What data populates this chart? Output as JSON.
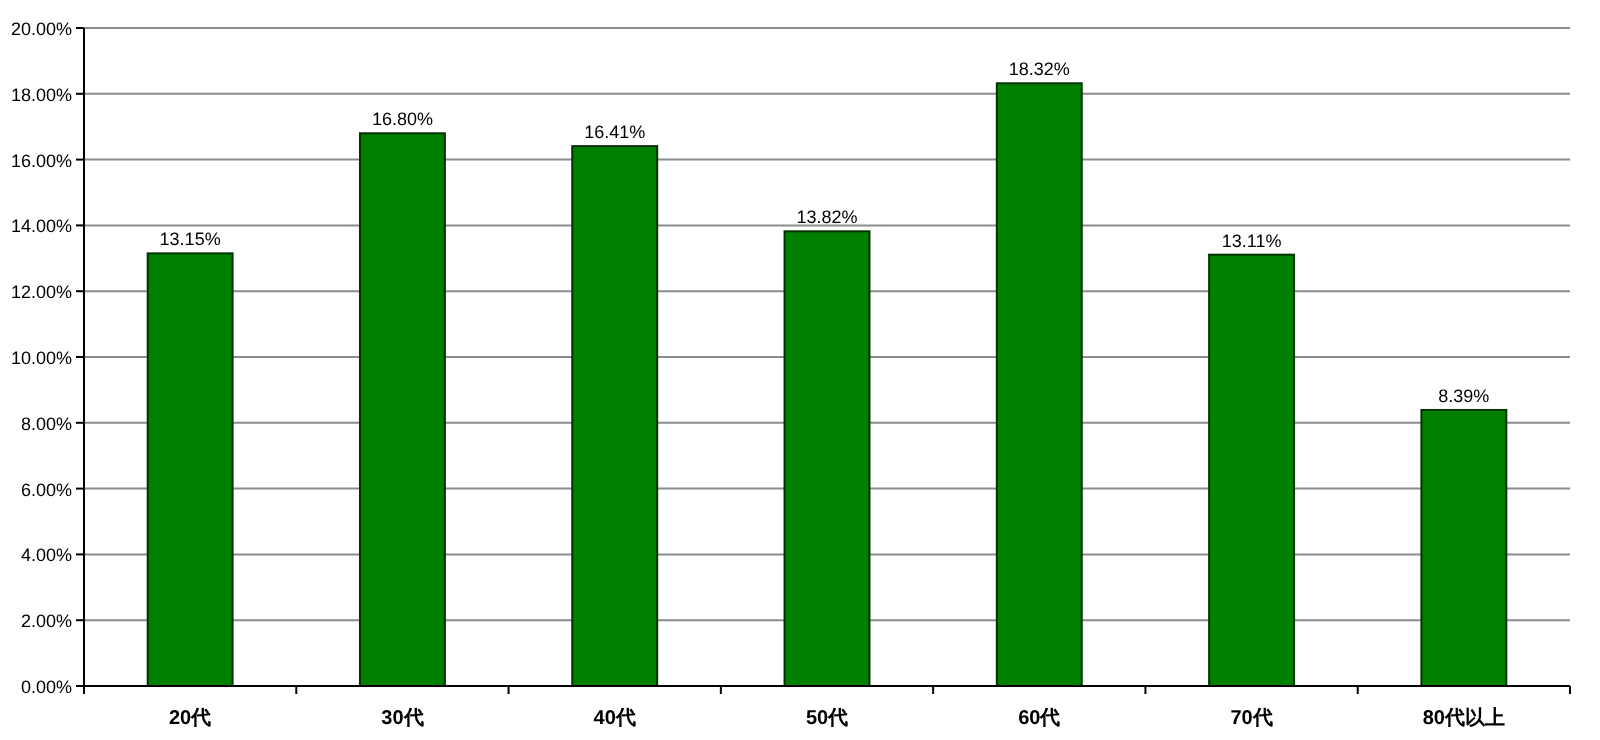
{
  "chart_data": {
    "type": "bar",
    "categories": [
      "20代",
      "30代",
      "40代",
      "50代",
      "60代",
      "70代",
      "80代以上"
    ],
    "values": [
      13.15,
      16.8,
      16.41,
      13.82,
      18.32,
      13.11,
      8.39
    ],
    "value_labels": [
      "13.15%",
      "16.80%",
      "16.41%",
      "13.82%",
      "18.32%",
      "13.11%",
      "8.39%"
    ],
    "color": "#008000",
    "ylim": [
      0,
      20
    ],
    "yticks": [
      {
        "value": 0,
        "label": "0.00%"
      },
      {
        "value": 2,
        "label": "2.00%"
      },
      {
        "value": 4,
        "label": "4.00%"
      },
      {
        "value": 6,
        "label": "6.00%"
      },
      {
        "value": 8,
        "label": "8.00%"
      },
      {
        "value": 10,
        "label": "10.00%"
      },
      {
        "value": 12,
        "label": "12.00%"
      },
      {
        "value": 14,
        "label": "14.00%"
      },
      {
        "value": 16,
        "label": "16.00%"
      },
      {
        "value": 18,
        "label": "18.00%"
      },
      {
        "value": 20,
        "label": "20.00%"
      }
    ],
    "grid": "y"
  }
}
